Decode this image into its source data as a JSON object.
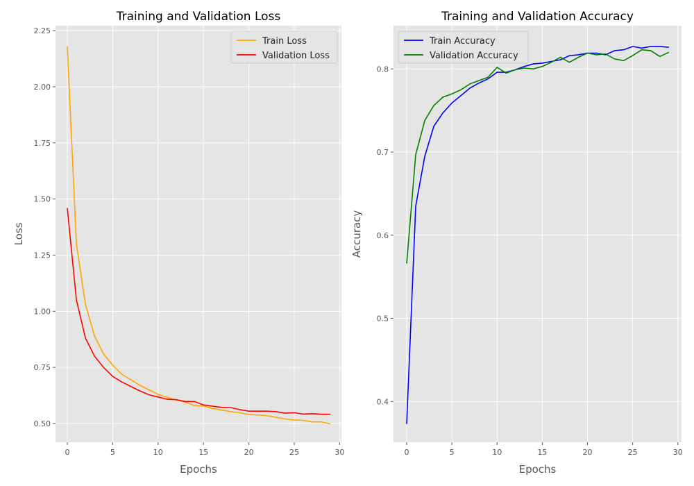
{
  "chart_data": [
    {
      "type": "line",
      "title": "Training and Validation Loss",
      "xlabel": "Epochs",
      "ylabel": "Loss",
      "xlim": [
        -1.3,
        30.2
      ],
      "ylim": [
        0.4165,
        2.272
      ],
      "xticks": [
        0,
        5,
        10,
        15,
        20,
        25,
        30
      ],
      "yticks": [
        0.5,
        0.75,
        1.0,
        1.25,
        1.5,
        1.75,
        2.0,
        2.25
      ],
      "ytick_labels": [
        "0.50",
        "0.75",
        "1.00",
        "1.25",
        "1.50",
        "1.75",
        "2.00",
        "2.25"
      ],
      "grid": true,
      "legend": "top-right",
      "x": [
        0,
        1,
        2,
        3,
        4,
        5,
        6,
        7,
        8,
        9,
        10,
        11,
        12,
        13,
        14,
        15,
        16,
        17,
        18,
        19,
        20,
        21,
        22,
        23,
        24,
        25,
        26,
        27,
        28,
        29
      ],
      "series": [
        {
          "name": "Train Loss",
          "color": "#ffa500",
          "values": [
            2.18,
            1.3,
            1.03,
            0.89,
            0.81,
            0.76,
            0.72,
            0.695,
            0.67,
            0.65,
            0.63,
            0.617,
            0.605,
            0.595,
            0.58,
            0.578,
            0.567,
            0.56,
            0.553,
            0.548,
            0.54,
            0.538,
            0.535,
            0.528,
            0.52,
            0.516,
            0.514,
            0.507,
            0.507,
            0.498
          ]
        },
        {
          "name": "Validation Loss",
          "color": "#ff0000",
          "values": [
            1.46,
            1.05,
            0.88,
            0.8,
            0.75,
            0.71,
            0.685,
            0.665,
            0.645,
            0.628,
            0.618,
            0.608,
            0.606,
            0.598,
            0.598,
            0.583,
            0.577,
            0.572,
            0.571,
            0.562,
            0.555,
            0.555,
            0.555,
            0.553,
            0.546,
            0.548,
            0.542,
            0.544,
            0.541,
            0.541
          ]
        }
      ]
    },
    {
      "type": "line",
      "title": "Training and Validation Accuracy",
      "xlabel": "Epochs",
      "ylabel": "Accuracy",
      "xlim": [
        -1.46,
        30.4
      ],
      "ylim": [
        0.351,
        0.852
      ],
      "xticks": [
        0,
        5,
        10,
        15,
        20,
        25,
        30
      ],
      "yticks": [
        0.4,
        0.5,
        0.6,
        0.7,
        0.8
      ],
      "ytick_labels": [
        "0.4",
        "0.5",
        "0.6",
        "0.7",
        "0.8"
      ],
      "grid": true,
      "legend": "top-left",
      "x": [
        0,
        1,
        2,
        3,
        4,
        5,
        6,
        7,
        8,
        9,
        10,
        11,
        12,
        13,
        14,
        15,
        16,
        17,
        18,
        19,
        20,
        21,
        22,
        23,
        24,
        25,
        26,
        27,
        28,
        29
      ],
      "series": [
        {
          "name": "Train Accuracy",
          "color": "#0000ff",
          "values": [
            0.373,
            0.635,
            0.695,
            0.731,
            0.747,
            0.759,
            0.768,
            0.777,
            0.783,
            0.788,
            0.796,
            0.796,
            0.799,
            0.803,
            0.806,
            0.807,
            0.809,
            0.811,
            0.816,
            0.817,
            0.819,
            0.819,
            0.817,
            0.822,
            0.823,
            0.827,
            0.825,
            0.827,
            0.827,
            0.826
          ]
        },
        {
          "name": "Validation Accuracy",
          "color": "#008000",
          "values": [
            0.566,
            0.697,
            0.738,
            0.756,
            0.766,
            0.77,
            0.775,
            0.782,
            0.786,
            0.79,
            0.802,
            0.795,
            0.799,
            0.801,
            0.8,
            0.803,
            0.808,
            0.814,
            0.808,
            0.814,
            0.819,
            0.817,
            0.818,
            0.812,
            0.81,
            0.816,
            0.823,
            0.822,
            0.815,
            0.82
          ]
        }
      ]
    }
  ]
}
